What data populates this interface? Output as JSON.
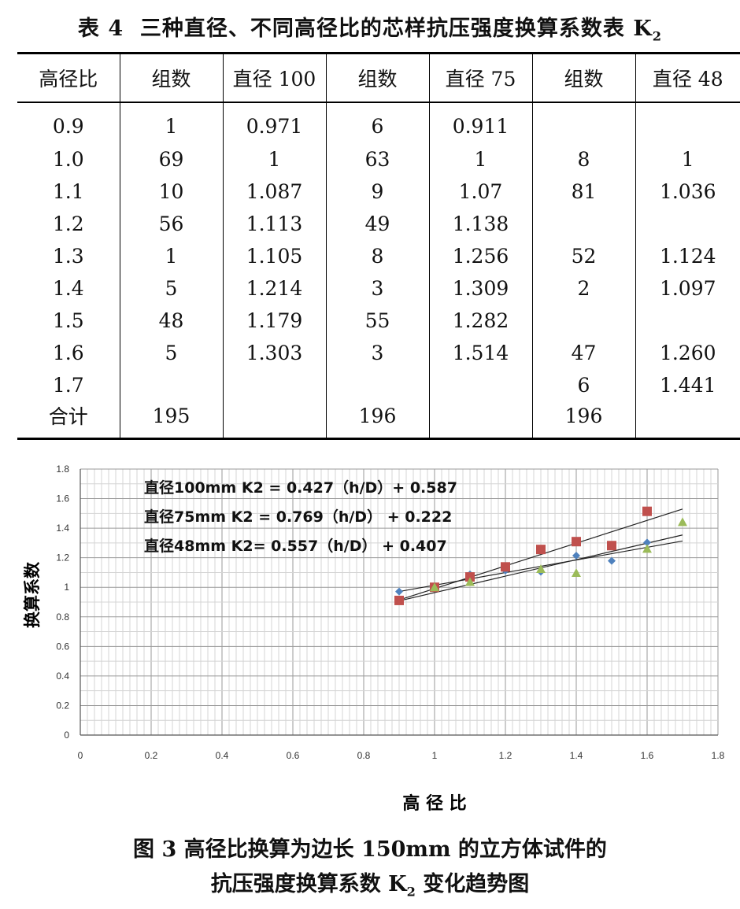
{
  "table": {
    "title_prefix": "表 4",
    "title_text": "三种直径、不同高径比的芯样抗压强度换算系数表 K",
    "title_sub": "2",
    "headers": [
      "高径比",
      "组数",
      "直径 100",
      "组数",
      "直径 75",
      "组数",
      "直径 48"
    ],
    "rows": [
      [
        "0.9",
        "1",
        "0.971",
        "6",
        "0.911",
        "",
        ""
      ],
      [
        "1.0",
        "69",
        "1",
        "63",
        "1",
        "8",
        "1"
      ],
      [
        "1.1",
        "10",
        "1.087",
        "9",
        "1.07",
        "81",
        "1.036"
      ],
      [
        "1.2",
        "56",
        "1.113",
        "49",
        "1.138",
        "",
        ""
      ],
      [
        "1.3",
        "1",
        "1.105",
        "8",
        "1.256",
        "52",
        "1.124"
      ],
      [
        "1.4",
        "5",
        "1.214",
        "3",
        "1.309",
        "2",
        "1.097"
      ],
      [
        "1.5",
        "48",
        "1.179",
        "55",
        "1.282",
        "",
        ""
      ],
      [
        "1.6",
        "5",
        "1.303",
        "3",
        "1.514",
        "47",
        "1.260"
      ],
      [
        "1.7",
        "",
        "",
        "",
        "",
        "6",
        "1.441"
      ],
      [
        "合计",
        "195",
        "",
        "196",
        "",
        "196",
        ""
      ]
    ]
  },
  "chart_data": {
    "type": "scatter",
    "xlabel": "高 径 比",
    "ylabel": "换算系数",
    "xlim": [
      0,
      1.8
    ],
    "ylim": [
      0,
      1.8
    ],
    "x_ticks": [
      "0",
      "0.2",
      "0.4",
      "0.6",
      "0.8",
      "1",
      "1.2",
      "1.4",
      "1.6",
      "1.8"
    ],
    "y_ticks": [
      "0",
      "0.2",
      "0.4",
      "0.6",
      "0.8",
      "1",
      "1.2",
      "1.4",
      "1.6",
      "1.8"
    ],
    "grid": true,
    "annotations": [
      "直径100mm  K2 = 0.427（h/D）+ 0.587",
      "直径75mm   K2 = 0.769（h/D）  + 0.222",
      "直径48mm   K2= 0.557（h/D）  + 0.407"
    ],
    "series": [
      {
        "marker": "diamond",
        "color": "#4f81bd",
        "x": [
          0.9,
          1.0,
          1.1,
          1.2,
          1.3,
          1.4,
          1.5,
          1.6
        ],
        "y": [
          0.971,
          1,
          1.087,
          1.113,
          1.105,
          1.214,
          1.179,
          1.303
        ],
        "fit": {
          "slope": 0.427,
          "intercept": 0.587,
          "x_range": [
            0.9,
            1.7
          ]
        }
      },
      {
        "marker": "square",
        "color": "#c0504d",
        "x": [
          0.9,
          1.0,
          1.1,
          1.2,
          1.3,
          1.4,
          1.5,
          1.6
        ],
        "y": [
          0.911,
          1,
          1.07,
          1.138,
          1.256,
          1.309,
          1.282,
          1.514
        ],
        "fit": {
          "slope": 0.769,
          "intercept": 0.222,
          "x_range": [
            0.9,
            1.7
          ]
        }
      },
      {
        "marker": "triangle",
        "color": "#9bbb59",
        "x": [
          1.0,
          1.1,
          1.3,
          1.4,
          1.6,
          1.7
        ],
        "y": [
          1,
          1.036,
          1.124,
          1.097,
          1.26,
          1.441
        ],
        "fit": {
          "slope": 0.557,
          "intercept": 0.407,
          "x_range": [
            0.9,
            1.7
          ]
        }
      }
    ]
  },
  "caption": {
    "line1": "图 3  高径比换算为边长 150mm 的立方体试件的",
    "line2_prefix": "抗压强度换算系数 K",
    "line2_sub": "2",
    "line2_suffix": " 变化趋势图"
  }
}
